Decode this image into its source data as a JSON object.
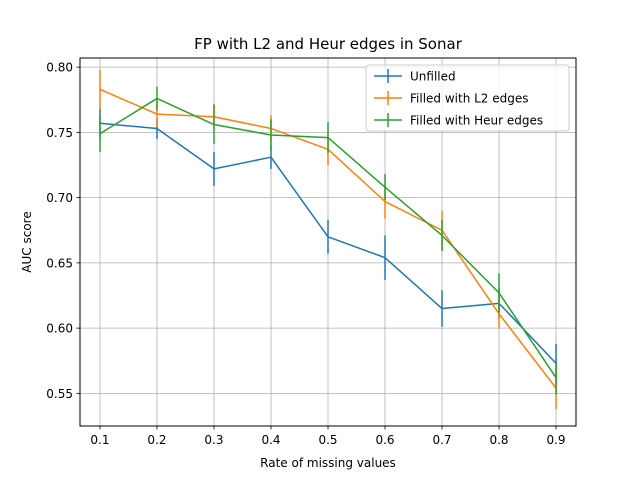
{
  "chart_data": {
    "type": "line",
    "title": "FP with L2 and Heur edges in Sonar",
    "xlabel": "Rate of missing values",
    "ylabel": "AUC score",
    "x": [
      0.1,
      0.2,
      0.3,
      0.4,
      0.5,
      0.6,
      0.7,
      0.8,
      0.9
    ],
    "xticks": [
      "0.1",
      "0.2",
      "0.3",
      "0.4",
      "0.5",
      "0.6",
      "0.7",
      "0.8",
      "0.9"
    ],
    "yticks": [
      0.55,
      0.6,
      0.65,
      0.7,
      0.75,
      0.8
    ],
    "ytick_labels": [
      "0.55",
      "0.60",
      "0.65",
      "0.70",
      "0.75",
      "0.80"
    ],
    "xlim": [
      0.065,
      0.935
    ],
    "ylim": [
      0.525,
      0.807
    ],
    "grid": true,
    "legend_position": "top-right",
    "series": [
      {
        "name": "Unfilled",
        "color": "#1f77b4",
        "values": [
          0.757,
          0.753,
          0.722,
          0.731,
          0.67,
          0.654,
          0.615,
          0.619,
          0.573
        ],
        "errors": [
          0.011,
          0.008,
          0.013,
          0.009,
          0.013,
          0.017,
          0.014,
          0.012,
          0.015
        ]
      },
      {
        "name": "Filled with L2 edges",
        "color": "#ff7f0e",
        "values": [
          0.783,
          0.764,
          0.762,
          0.753,
          0.737,
          0.697,
          0.675,
          0.611,
          0.554
        ],
        "errors": [
          0.015,
          0.01,
          0.01,
          0.01,
          0.012,
          0.013,
          0.015,
          0.011,
          0.016
        ]
      },
      {
        "name": "Filled with Heur edges",
        "color": "#2ca02c",
        "values": [
          0.749,
          0.776,
          0.756,
          0.748,
          0.746,
          0.708,
          0.671,
          0.627,
          0.562
        ],
        "errors": [
          0.014,
          0.009,
          0.015,
          0.012,
          0.012,
          0.01,
          0.012,
          0.015,
          0.013
        ]
      }
    ]
  }
}
